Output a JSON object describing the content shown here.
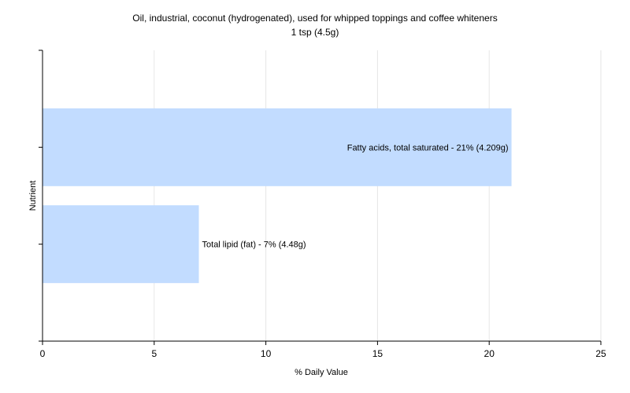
{
  "chart_data": {
    "type": "bar",
    "orientation": "horizontal",
    "title": "Oil, industrial, coconut (hydrogenated), used for whipped toppings and coffee whiteners",
    "subtitle": "1 tsp (4.5g)",
    "xlabel": "% Daily Value",
    "ylabel": "Nutrient",
    "xlim": [
      0,
      25
    ],
    "xticks": [
      "0",
      "5",
      "10",
      "15",
      "20",
      "25"
    ],
    "grid": true,
    "legend": "none",
    "categories": [
      "Fatty acids, total saturated",
      "Total lipid (fat)"
    ],
    "values": [
      21,
      7
    ],
    "data_labels": [
      "Fatty acids, total saturated - 21% (4.209g)",
      "Total lipid (fat) - 7% (4.48g)"
    ],
    "bar_color": "#c2dcff",
    "grid_color": "#e6e6e6",
    "axis_color": "#000000"
  }
}
